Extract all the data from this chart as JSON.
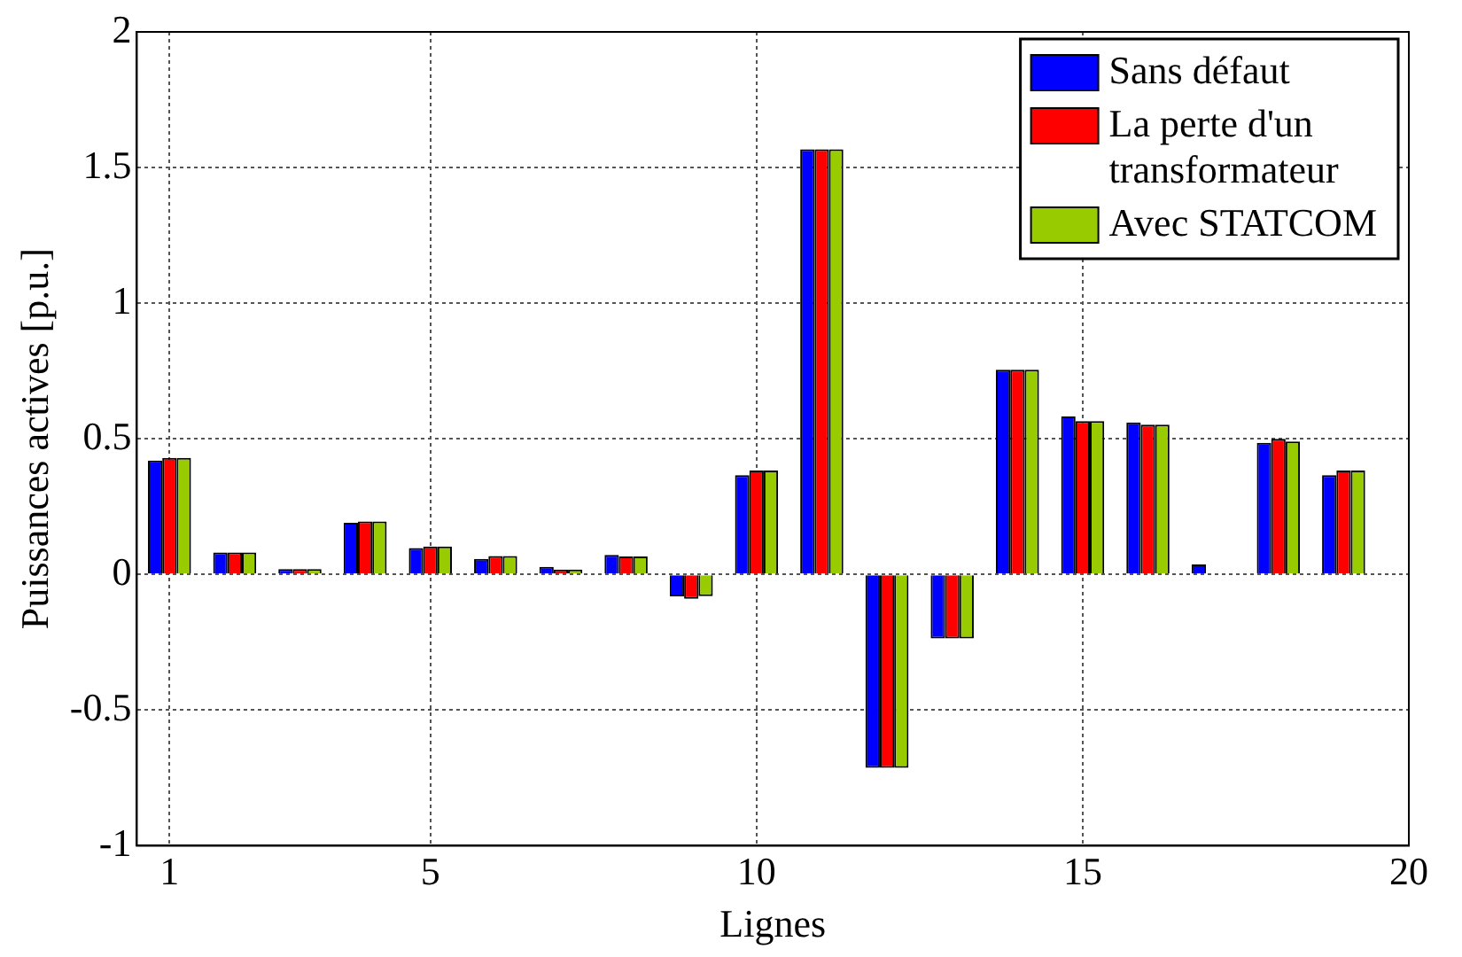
{
  "chart_data": {
    "type": "bar",
    "xlabel": "Lignes",
    "ylabel": "Puissances actives [p.u.]",
    "x": [
      1,
      2,
      3,
      4,
      5,
      6,
      7,
      8,
      9,
      10,
      11,
      12,
      13,
      14,
      15,
      16,
      17,
      18,
      19
    ],
    "series": [
      {
        "name": "Sans défaut",
        "color": "#0000ff",
        "values": [
          0.42,
          0.081,
          0.02,
          0.19,
          0.097,
          0.057,
          0.028,
          0.072,
          -0.081,
          0.366,
          1.567,
          -0.713,
          -0.236,
          0.755,
          0.582,
          0.56,
          0.037,
          0.485,
          0.366
        ]
      },
      {
        "name": "La perte d'un transformateur",
        "color": "#ff0000",
        "values": [
          0.43,
          0.081,
          0.02,
          0.195,
          0.103,
          0.068,
          0.018,
          0.066,
          -0.09,
          0.383,
          1.567,
          -0.713,
          -0.236,
          0.755,
          0.565,
          0.552,
          0,
          0.5,
          0.383
        ]
      },
      {
        "name": "Avec STATCOM",
        "color": "#99cc00",
        "values": [
          0.43,
          0.081,
          0.02,
          0.195,
          0.103,
          0.068,
          0.018,
          0.066,
          -0.08,
          0.383,
          1.567,
          -0.713,
          -0.236,
          0.755,
          0.565,
          0.552,
          0,
          0.49,
          0.383
        ]
      }
    ],
    "xlim": [
      0.5,
      20
    ],
    "xticks": [
      1,
      5,
      10,
      15,
      20
    ],
    "ylim": [
      -1,
      2
    ],
    "yticks": [
      -1,
      -0.5,
      0,
      0.5,
      1,
      1.5,
      2
    ],
    "grid": true,
    "legend": "top right"
  }
}
